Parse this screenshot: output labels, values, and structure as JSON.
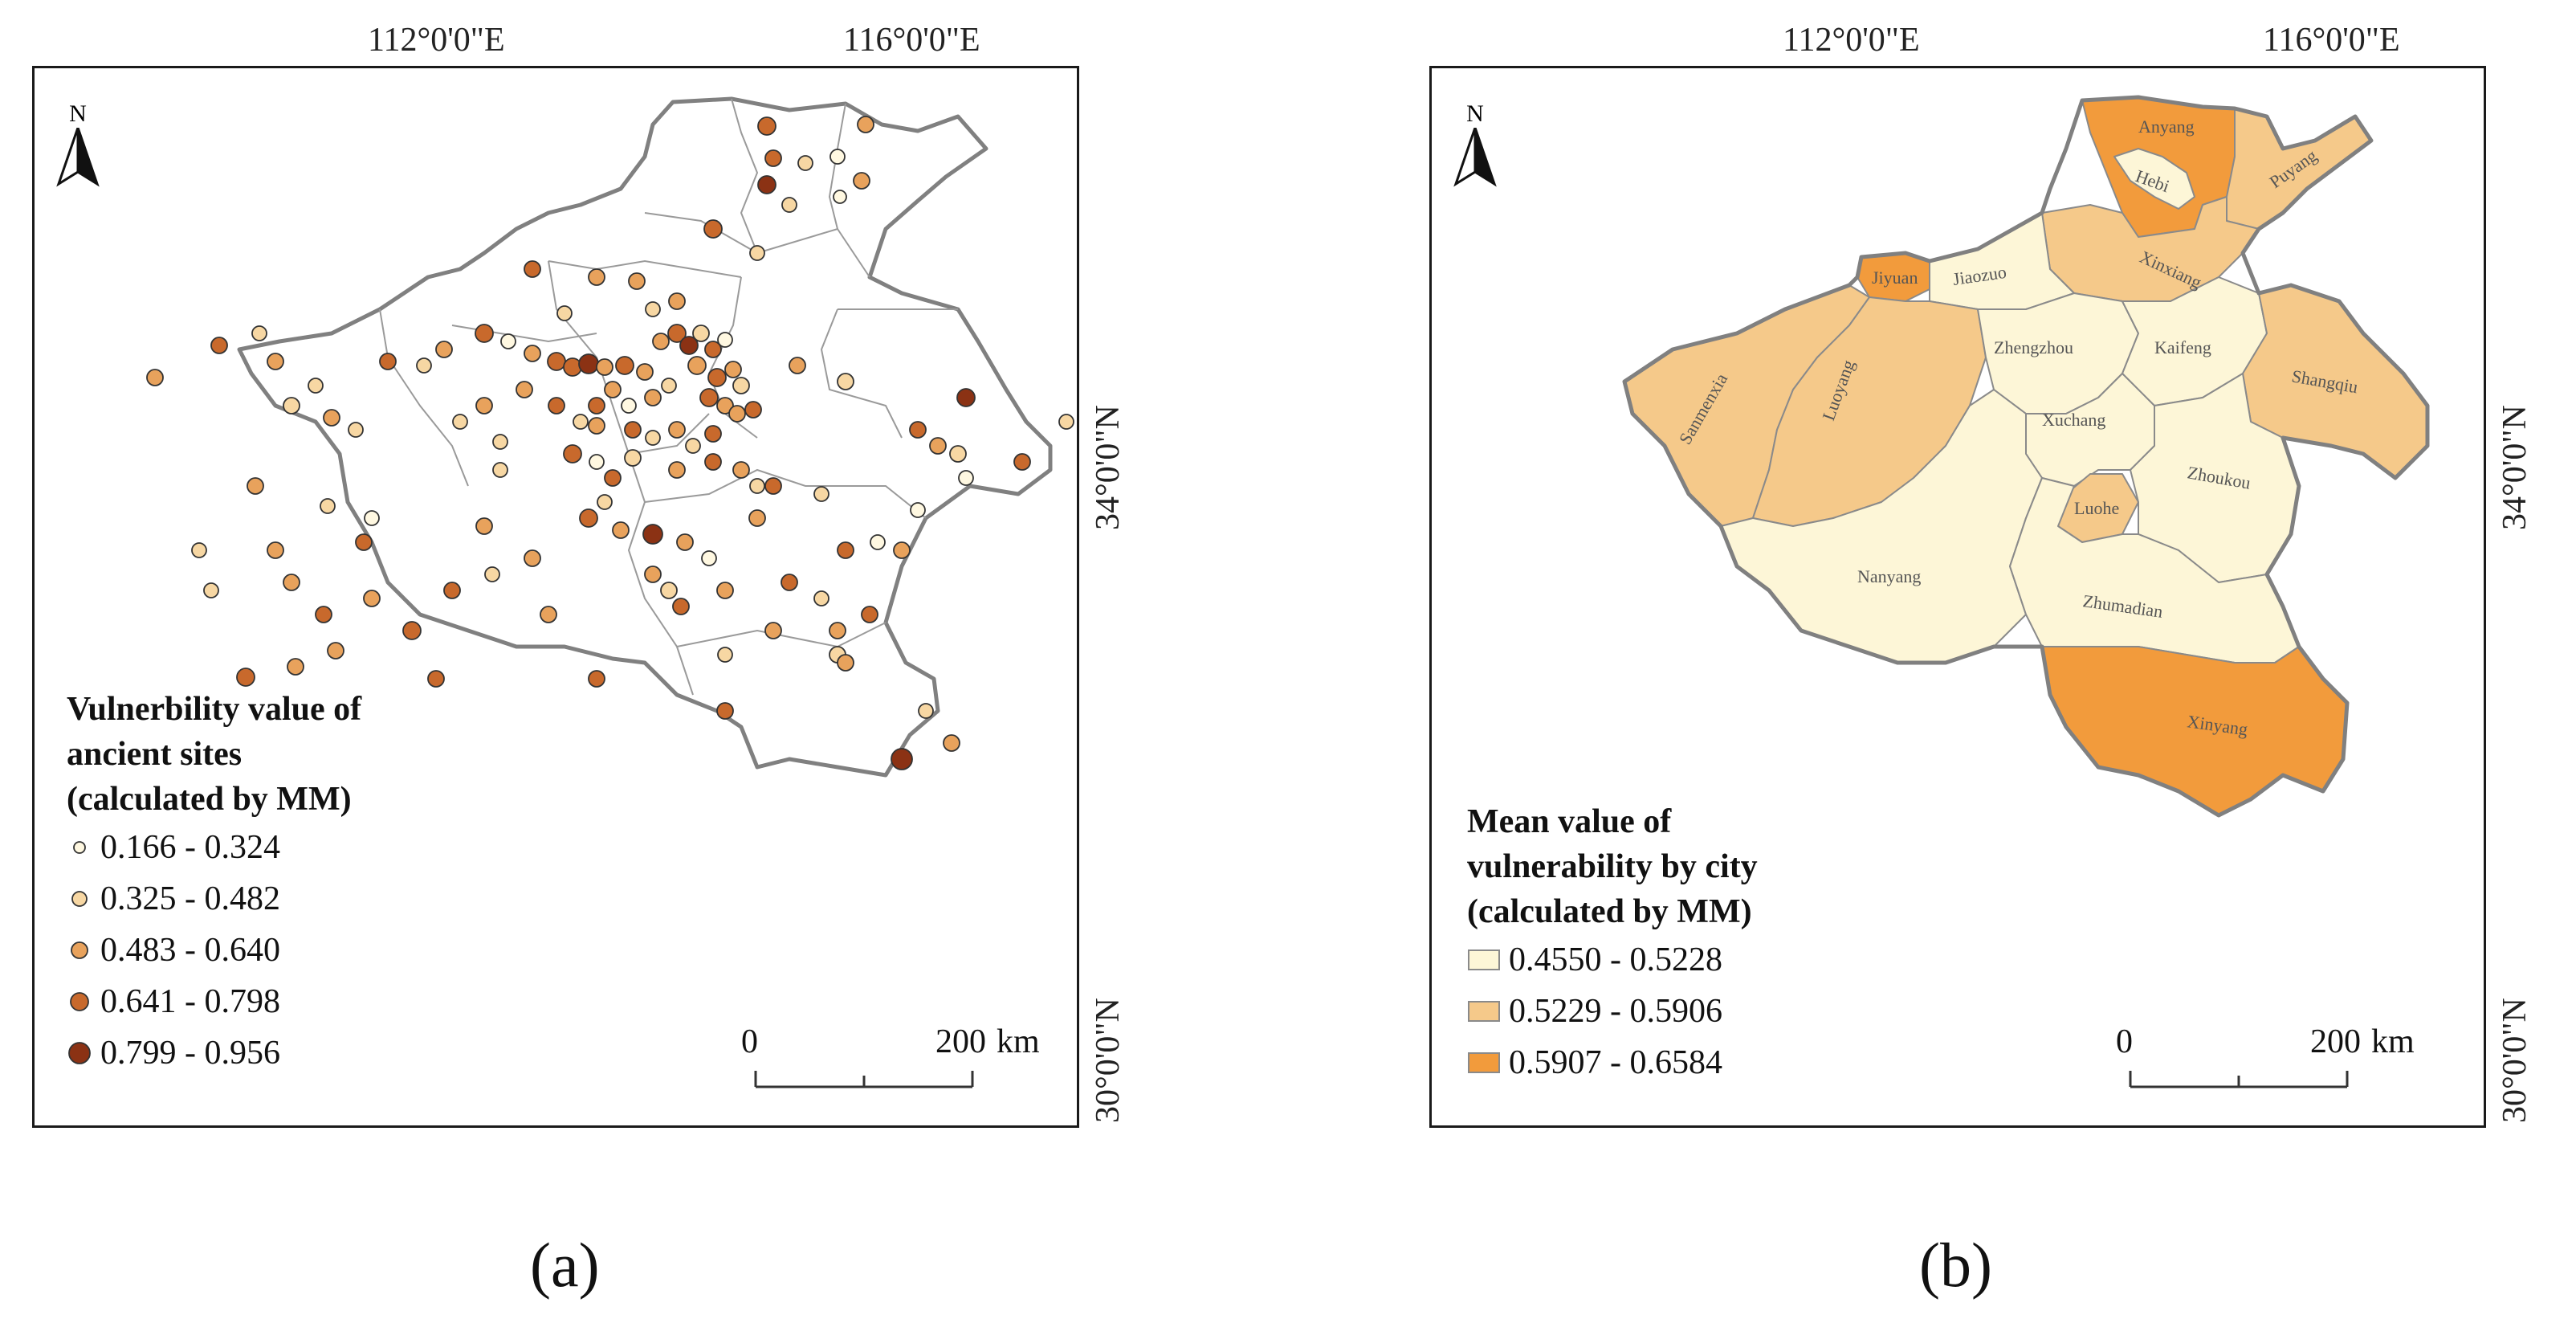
{
  "panel_a": {
    "top_ticks": [
      "112°0'0\"E",
      "116°0'0\"E"
    ],
    "right_ticks": [
      "34°0'0\"N",
      "30°0'0\"N"
    ],
    "north_label": "N",
    "legend": {
      "title_lines": [
        "Vulnerbility value of",
        "ancient sites",
        "(calculated by MM)"
      ],
      "classes": [
        {
          "label": "0.166 - 0.324",
          "color": "#fff8e1",
          "size": "xs"
        },
        {
          "label": "0.325 - 0.482",
          "color": "#f7d7a3",
          "size": "s"
        },
        {
          "label": "0.483 - 0.640",
          "color": "#e8a25c",
          "size": "m"
        },
        {
          "label": "0.641 - 0.798",
          "color": "#c8692c",
          "size": "l"
        },
        {
          "label": "0.799 - 0.956",
          "color": "#8b3214",
          "size": "xl"
        }
      ]
    },
    "scale": {
      "start": "0",
      "end": "200",
      "unit": "km"
    },
    "caption": "(a)"
  },
  "panel_b": {
    "top_ticks": [
      "112°0'0\"E",
      "116°0'0\"E"
    ],
    "right_ticks": [
      "34°0'0\"N",
      "30°0'0\"N"
    ],
    "north_label": "N",
    "legend": {
      "title_lines": [
        "Mean value of",
        "vulnerability by city",
        "(calculated by MM)"
      ],
      "classes": [
        {
          "label": "0.4550 - 0.5228",
          "color": "#fdf6d7"
        },
        {
          "label": "0.5229 - 0.5906",
          "color": "#f5c98a"
        },
        {
          "label": "0.5907 - 0.6584",
          "color": "#f29b3c"
        }
      ]
    },
    "cities": [
      {
        "name": "Anyang",
        "class": 2
      },
      {
        "name": "Hebi",
        "class": 0
      },
      {
        "name": "Puyang",
        "class": 1
      },
      {
        "name": "Xinxiang",
        "class": 1
      },
      {
        "name": "Jiaozuo",
        "class": 0
      },
      {
        "name": "Jiyuan",
        "class": 2
      },
      {
        "name": "Sanmenxia",
        "class": 1
      },
      {
        "name": "Luoyang",
        "class": 1
      },
      {
        "name": "Zhengzhou",
        "class": 0
      },
      {
        "name": "Kaifeng",
        "class": 0
      },
      {
        "name": "Shangqiu",
        "class": 1
      },
      {
        "name": "Xuchang",
        "class": 0
      },
      {
        "name": "Luohe",
        "class": 1
      },
      {
        "name": "Zhoukou",
        "class": 0
      },
      {
        "name": "Nanyang",
        "class": 0
      },
      {
        "name": "Zhumadian",
        "class": 0
      },
      {
        "name": "Xinyang",
        "class": 2
      }
    ],
    "scale": {
      "start": "0",
      "end": "200",
      "unit": "km"
    },
    "caption": "(b)"
  }
}
